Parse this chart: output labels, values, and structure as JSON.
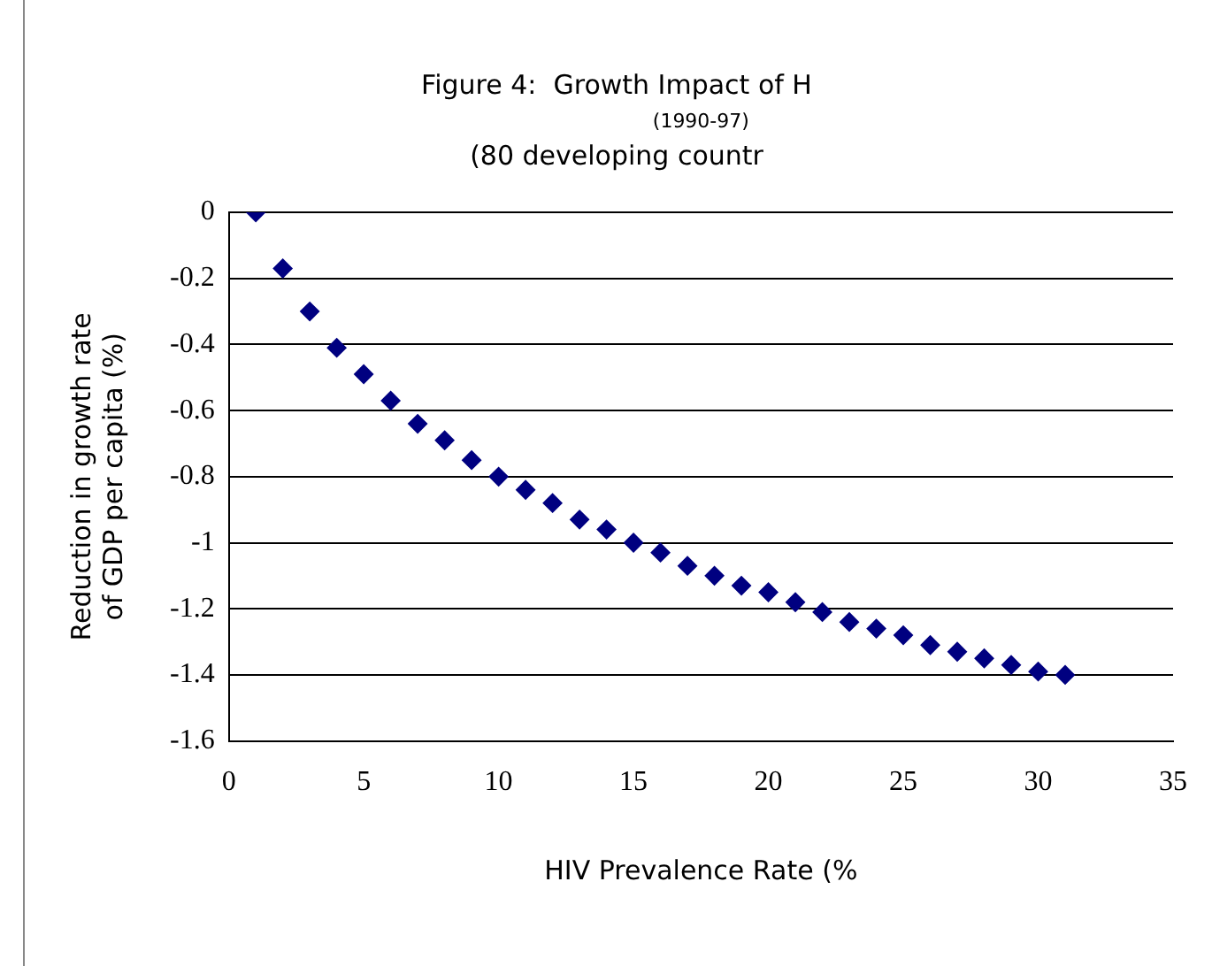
{
  "chart_data": {
    "type": "scatter",
    "title": "Figure 4:  Growth Impact of H",
    "subtitle": "(80 developing countr",
    "annotations": [
      "(1990-97)"
    ],
    "xlabel": "HIV Prevalence Rate (%",
    "ylabel": "Reduction in growth rate of GDP per capita (%)",
    "x": [
      1,
      2,
      3,
      4,
      5,
      6,
      7,
      8,
      9,
      10,
      11,
      12,
      13,
      14,
      15,
      16,
      17,
      18,
      19,
      20,
      21,
      22,
      23,
      24,
      25,
      26,
      27,
      28,
      29,
      30,
      31
    ],
    "series": [
      {
        "color": "#000080",
        "values": [
          0,
          -0.17,
          -0.3,
          -0.41,
          -0.49,
          -0.57,
          -0.64,
          -0.69,
          -0.75,
          -0.8,
          -0.84,
          -0.88,
          -0.93,
          -0.96,
          -1.0,
          -1.03,
          -1.07,
          -1.1,
          -1.13,
          -1.15,
          -1.18,
          -1.21,
          -1.24,
          -1.26,
          -1.28,
          -1.31,
          -1.33,
          -1.35,
          -1.37,
          -1.39,
          -1.4
        ]
      }
    ],
    "xlim": [
      0,
      35
    ],
    "xticks": [
      0,
      5,
      10,
      15,
      20,
      25,
      30,
      35
    ],
    "ylim": [
      -1.6,
      0
    ],
    "yticks": [
      0,
      -0.2,
      -0.4,
      -0.6,
      -0.8,
      -1,
      -1.2,
      -1.4,
      -1.6
    ],
    "grid": "y",
    "legend": false,
    "marker": "diamond"
  }
}
